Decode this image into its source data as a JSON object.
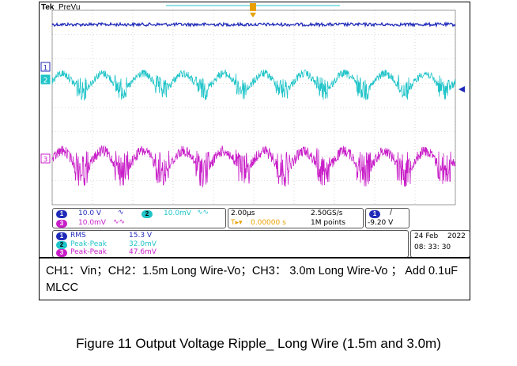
{
  "scope": {
    "brand": "Tek",
    "run_state": "PreVu",
    "channel_markers": [
      "1",
      "2",
      "3"
    ],
    "channels": [
      {
        "id": "1",
        "scale": "10.0 V",
        "color": "#1f2ab8"
      },
      {
        "id": "2",
        "scale": "10.0mV",
        "color": "#20c4c8"
      },
      {
        "id": "3",
        "scale": "10.0mV",
        "color": "#c81ec8"
      }
    ],
    "timebase": {
      "time_div": "2.00µs",
      "trigger_offset": "0.00000 s",
      "sample_rate": "2.50GS/s",
      "record_length": "1M points"
    },
    "trigger": {
      "source": "1",
      "slope": "/",
      "level": "-9.20 V"
    },
    "measurements": [
      {
        "channel": "1",
        "type": "RMS",
        "value": "15.3 V"
      },
      {
        "channel": "2",
        "type": "Peak-Peak",
        "value": "32.0mV"
      },
      {
        "channel": "3",
        "type": "Peak-Peak",
        "value": "47.6mV"
      }
    ],
    "date": {
      "day_month": "24 Feb",
      "year": "2022",
      "time": "08: 33: 30"
    },
    "trace_colors": {
      "ch1": "#1f2ab8",
      "ch2": "#20c4c8",
      "ch3": "#c81ec8",
      "grid": "#b8b8b8"
    }
  },
  "caption": "CH1：Vin；CH2：1.5m Long Wire-Vo；CH3： 3.0m Long Wire-Vo ； Add 0.1uF MLCC",
  "figure_caption": "Figure 11 Output Voltage Ripple_ Long Wire (1.5m and 3.0m)"
}
